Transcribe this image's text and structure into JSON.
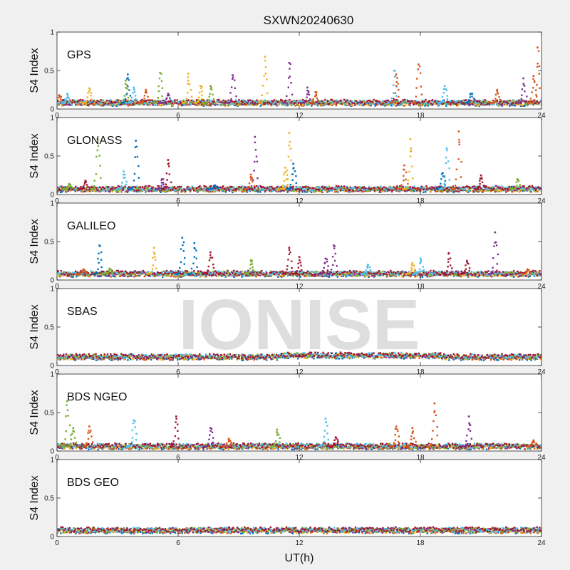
{
  "title": "SXWN20240630",
  "watermark": "IONISE",
  "chart_data": {
    "type": "scatter",
    "title": "SXWN20240630",
    "xlabel": "UT(h)",
    "ylabel": "S4 Index",
    "xlim": [
      0,
      24
    ],
    "ylim": [
      0,
      1
    ],
    "xticks": [
      "0",
      "6",
      "12",
      "18",
      "24"
    ],
    "yticks": [
      "0",
      "0.5",
      "1"
    ],
    "series_colors": [
      "#0072BD",
      "#D95319",
      "#EDB120",
      "#7E2F8E",
      "#77AC30",
      "#4DBEEE",
      "#A2142F"
    ],
    "panels": [
      {
        "name": "GPS",
        "baseline": 0.08,
        "spikes": [
          {
            "t": 0.1,
            "y": 0.18,
            "c": 1
          },
          {
            "t": 0.5,
            "y": 0.2,
            "c": 5
          },
          {
            "t": 1.6,
            "y": 0.27,
            "c": 2
          },
          {
            "t": 3.4,
            "y": 0.37,
            "c": 4
          },
          {
            "t": 3.5,
            "y": 0.45,
            "c": 0
          },
          {
            "t": 3.8,
            "y": 0.28,
            "c": 5
          },
          {
            "t": 4.4,
            "y": 0.25,
            "c": 1
          },
          {
            "t": 5.1,
            "y": 0.47,
            "c": 4
          },
          {
            "t": 5.5,
            "y": 0.2,
            "c": 3
          },
          {
            "t": 6.5,
            "y": 0.46,
            "c": 2
          },
          {
            "t": 7.1,
            "y": 0.3,
            "c": 2
          },
          {
            "t": 7.6,
            "y": 0.3,
            "c": 4
          },
          {
            "t": 8.7,
            "y": 0.44,
            "c": 3
          },
          {
            "t": 10.3,
            "y": 0.68,
            "c": 2
          },
          {
            "t": 11.5,
            "y": 0.6,
            "c": 3
          },
          {
            "t": 12.4,
            "y": 0.28,
            "c": 3
          },
          {
            "t": 12.8,
            "y": 0.22,
            "c": 1
          },
          {
            "t": 16.7,
            "y": 0.5,
            "c": 5
          },
          {
            "t": 16.8,
            "y": 0.45,
            "c": 1
          },
          {
            "t": 17.9,
            "y": 0.58,
            "c": 1
          },
          {
            "t": 19.2,
            "y": 0.3,
            "c": 5
          },
          {
            "t": 20.5,
            "y": 0.2,
            "c": 0
          },
          {
            "t": 21.8,
            "y": 0.25,
            "c": 1
          },
          {
            "t": 23.1,
            "y": 0.4,
            "c": 3
          },
          {
            "t": 23.6,
            "y": 0.43,
            "c": 1
          },
          {
            "t": 23.8,
            "y": 0.8,
            "c": 1
          }
        ]
      },
      {
        "name": "GLONASS",
        "baseline": 0.07,
        "spikes": [
          {
            "t": 0.6,
            "y": 0.14,
            "c": 4
          },
          {
            "t": 1.4,
            "y": 0.18,
            "c": 6
          },
          {
            "t": 2.0,
            "y": 0.72,
            "c": 4
          },
          {
            "t": 3.3,
            "y": 0.3,
            "c": 5
          },
          {
            "t": 3.9,
            "y": 0.7,
            "c": 0
          },
          {
            "t": 5.2,
            "y": 0.2,
            "c": 3
          },
          {
            "t": 5.5,
            "y": 0.45,
            "c": 6
          },
          {
            "t": 7.8,
            "y": 0.12,
            "c": 0
          },
          {
            "t": 9.6,
            "y": 0.26,
            "c": 1
          },
          {
            "t": 9.8,
            "y": 0.75,
            "c": 3
          },
          {
            "t": 11.3,
            "y": 0.35,
            "c": 2
          },
          {
            "t": 11.5,
            "y": 0.8,
            "c": 2
          },
          {
            "t": 11.7,
            "y": 0.4,
            "c": 0
          },
          {
            "t": 17.2,
            "y": 0.38,
            "c": 1
          },
          {
            "t": 17.5,
            "y": 0.72,
            "c": 2
          },
          {
            "t": 19.1,
            "y": 0.28,
            "c": 0
          },
          {
            "t": 19.3,
            "y": 0.6,
            "c": 5
          },
          {
            "t": 19.9,
            "y": 0.82,
            "c": 1
          },
          {
            "t": 21.0,
            "y": 0.25,
            "c": 6
          },
          {
            "t": 22.8,
            "y": 0.2,
            "c": 4
          }
        ]
      },
      {
        "name": "GALILEO",
        "baseline": 0.08,
        "spikes": [
          {
            "t": 1.3,
            "y": 0.14,
            "c": 1
          },
          {
            "t": 2.1,
            "y": 0.45,
            "c": 0
          },
          {
            "t": 2.6,
            "y": 0.15,
            "c": 4
          },
          {
            "t": 4.8,
            "y": 0.42,
            "c": 2
          },
          {
            "t": 6.2,
            "y": 0.55,
            "c": 0
          },
          {
            "t": 6.8,
            "y": 0.48,
            "c": 0
          },
          {
            "t": 7.6,
            "y": 0.36,
            "c": 6
          },
          {
            "t": 9.6,
            "y": 0.26,
            "c": 4
          },
          {
            "t": 11.5,
            "y": 0.42,
            "c": 6
          },
          {
            "t": 12.0,
            "y": 0.3,
            "c": 6
          },
          {
            "t": 13.3,
            "y": 0.28,
            "c": 3
          },
          {
            "t": 13.7,
            "y": 0.45,
            "c": 3
          },
          {
            "t": 15.4,
            "y": 0.2,
            "c": 5
          },
          {
            "t": 17.6,
            "y": 0.22,
            "c": 2
          },
          {
            "t": 18.0,
            "y": 0.28,
            "c": 5
          },
          {
            "t": 19.4,
            "y": 0.35,
            "c": 6
          },
          {
            "t": 20.3,
            "y": 0.25,
            "c": 6
          },
          {
            "t": 21.7,
            "y": 0.62,
            "c": 3
          },
          {
            "t": 23.3,
            "y": 0.14,
            "c": 1
          }
        ]
      },
      {
        "name": "SBAS",
        "baseline": 0.11,
        "spikes": []
      },
      {
        "name": "BDS NGEO",
        "baseline": 0.06,
        "spikes": [
          {
            "t": 0.5,
            "y": 0.65,
            "c": 4
          },
          {
            "t": 0.8,
            "y": 0.3,
            "c": 4
          },
          {
            "t": 1.6,
            "y": 0.32,
            "c": 1
          },
          {
            "t": 3.8,
            "y": 0.4,
            "c": 5
          },
          {
            "t": 5.9,
            "y": 0.45,
            "c": 6
          },
          {
            "t": 7.6,
            "y": 0.3,
            "c": 3
          },
          {
            "t": 8.5,
            "y": 0.16,
            "c": 1
          },
          {
            "t": 10.9,
            "y": 0.28,
            "c": 4
          },
          {
            "t": 13.3,
            "y": 0.42,
            "c": 5
          },
          {
            "t": 13.8,
            "y": 0.18,
            "c": 6
          },
          {
            "t": 16.8,
            "y": 0.32,
            "c": 1
          },
          {
            "t": 17.6,
            "y": 0.3,
            "c": 1
          },
          {
            "t": 18.7,
            "y": 0.62,
            "c": 1
          },
          {
            "t": 20.4,
            "y": 0.45,
            "c": 3
          },
          {
            "t": 23.6,
            "y": 0.14,
            "c": 1
          }
        ]
      },
      {
        "name": "BDS GEO",
        "baseline": 0.08,
        "spikes": []
      }
    ]
  }
}
